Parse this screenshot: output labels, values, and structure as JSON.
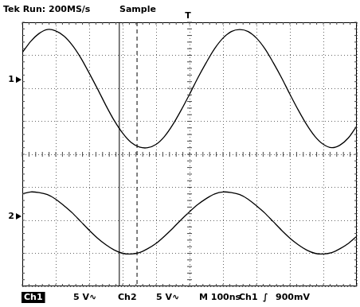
{
  "chart_data": {
    "type": "line",
    "header": [
      "Tek Run: 200MS/s",
      "Sample"
    ],
    "footer": [
      "Ch1",
      "5 V∿",
      "Ch2",
      "5 V∿",
      "M 100ns",
      "Ch1",
      "∫",
      "900mV"
    ],
    "x": [
      0,
      25,
      50,
      75,
      100,
      125,
      150,
      175,
      200,
      225,
      250,
      275,
      300,
      325,
      350,
      375,
      400,
      425,
      450,
      475,
      500,
      525,
      550,
      575,
      600,
      625,
      650,
      675,
      700,
      725,
      750,
      775,
      800,
      825,
      850,
      875,
      900,
      925,
      950,
      975,
      1000
    ],
    "xlim": [
      0,
      1000
    ],
    "xticks": [
      0,
      100,
      200,
      300,
      400,
      500,
      600,
      700,
      800,
      900,
      1000
    ],
    "ylim": [
      -20,
      20
    ],
    "yticks": [
      -20,
      -15,
      -10,
      -5,
      0,
      5,
      10,
      15,
      20
    ],
    "grid": true,
    "tick_labels": false,
    "series": [
      {
        "name": "1",
        "color": "#000000",
        "ground": 11.3,
        "values": [
          15.4,
          17.1,
          18.3,
          18.9,
          18.7,
          17.9,
          16.5,
          14.6,
          12.3,
          9.9,
          7.4,
          5.1,
          3.2,
          1.8,
          1.1,
          1.0,
          1.5,
          2.7,
          4.5,
          6.7,
          9.1,
          11.6,
          13.9,
          16.0,
          17.6,
          18.6,
          18.9,
          18.6,
          17.6,
          16.0,
          13.9,
          11.6,
          9.1,
          6.7,
          4.5,
          2.7,
          1.5,
          1.0,
          1.4,
          2.5,
          4.3
        ]
      },
      {
        "name": "2",
        "color": "#000000",
        "ground": -9.4,
        "values": [
          -6.0,
          -5.7,
          -5.8,
          -6.1,
          -6.8,
          -7.8,
          -8.9,
          -10.2,
          -11.5,
          -12.7,
          -13.7,
          -14.5,
          -15.0,
          -15.1,
          -14.9,
          -14.3,
          -13.5,
          -12.4,
          -11.2,
          -9.9,
          -8.7,
          -7.6,
          -6.7,
          -6.0,
          -5.7,
          -5.8,
          -6.1,
          -6.8,
          -7.8,
          -8.9,
          -10.2,
          -11.5,
          -12.7,
          -13.7,
          -14.5,
          -15.0,
          -15.1,
          -14.9,
          -14.3,
          -13.5,
          -12.4
        ]
      }
    ],
    "cursors": [
      290,
      343
    ],
    "trigger": {
      "label": "T",
      "x": 495
    }
  }
}
